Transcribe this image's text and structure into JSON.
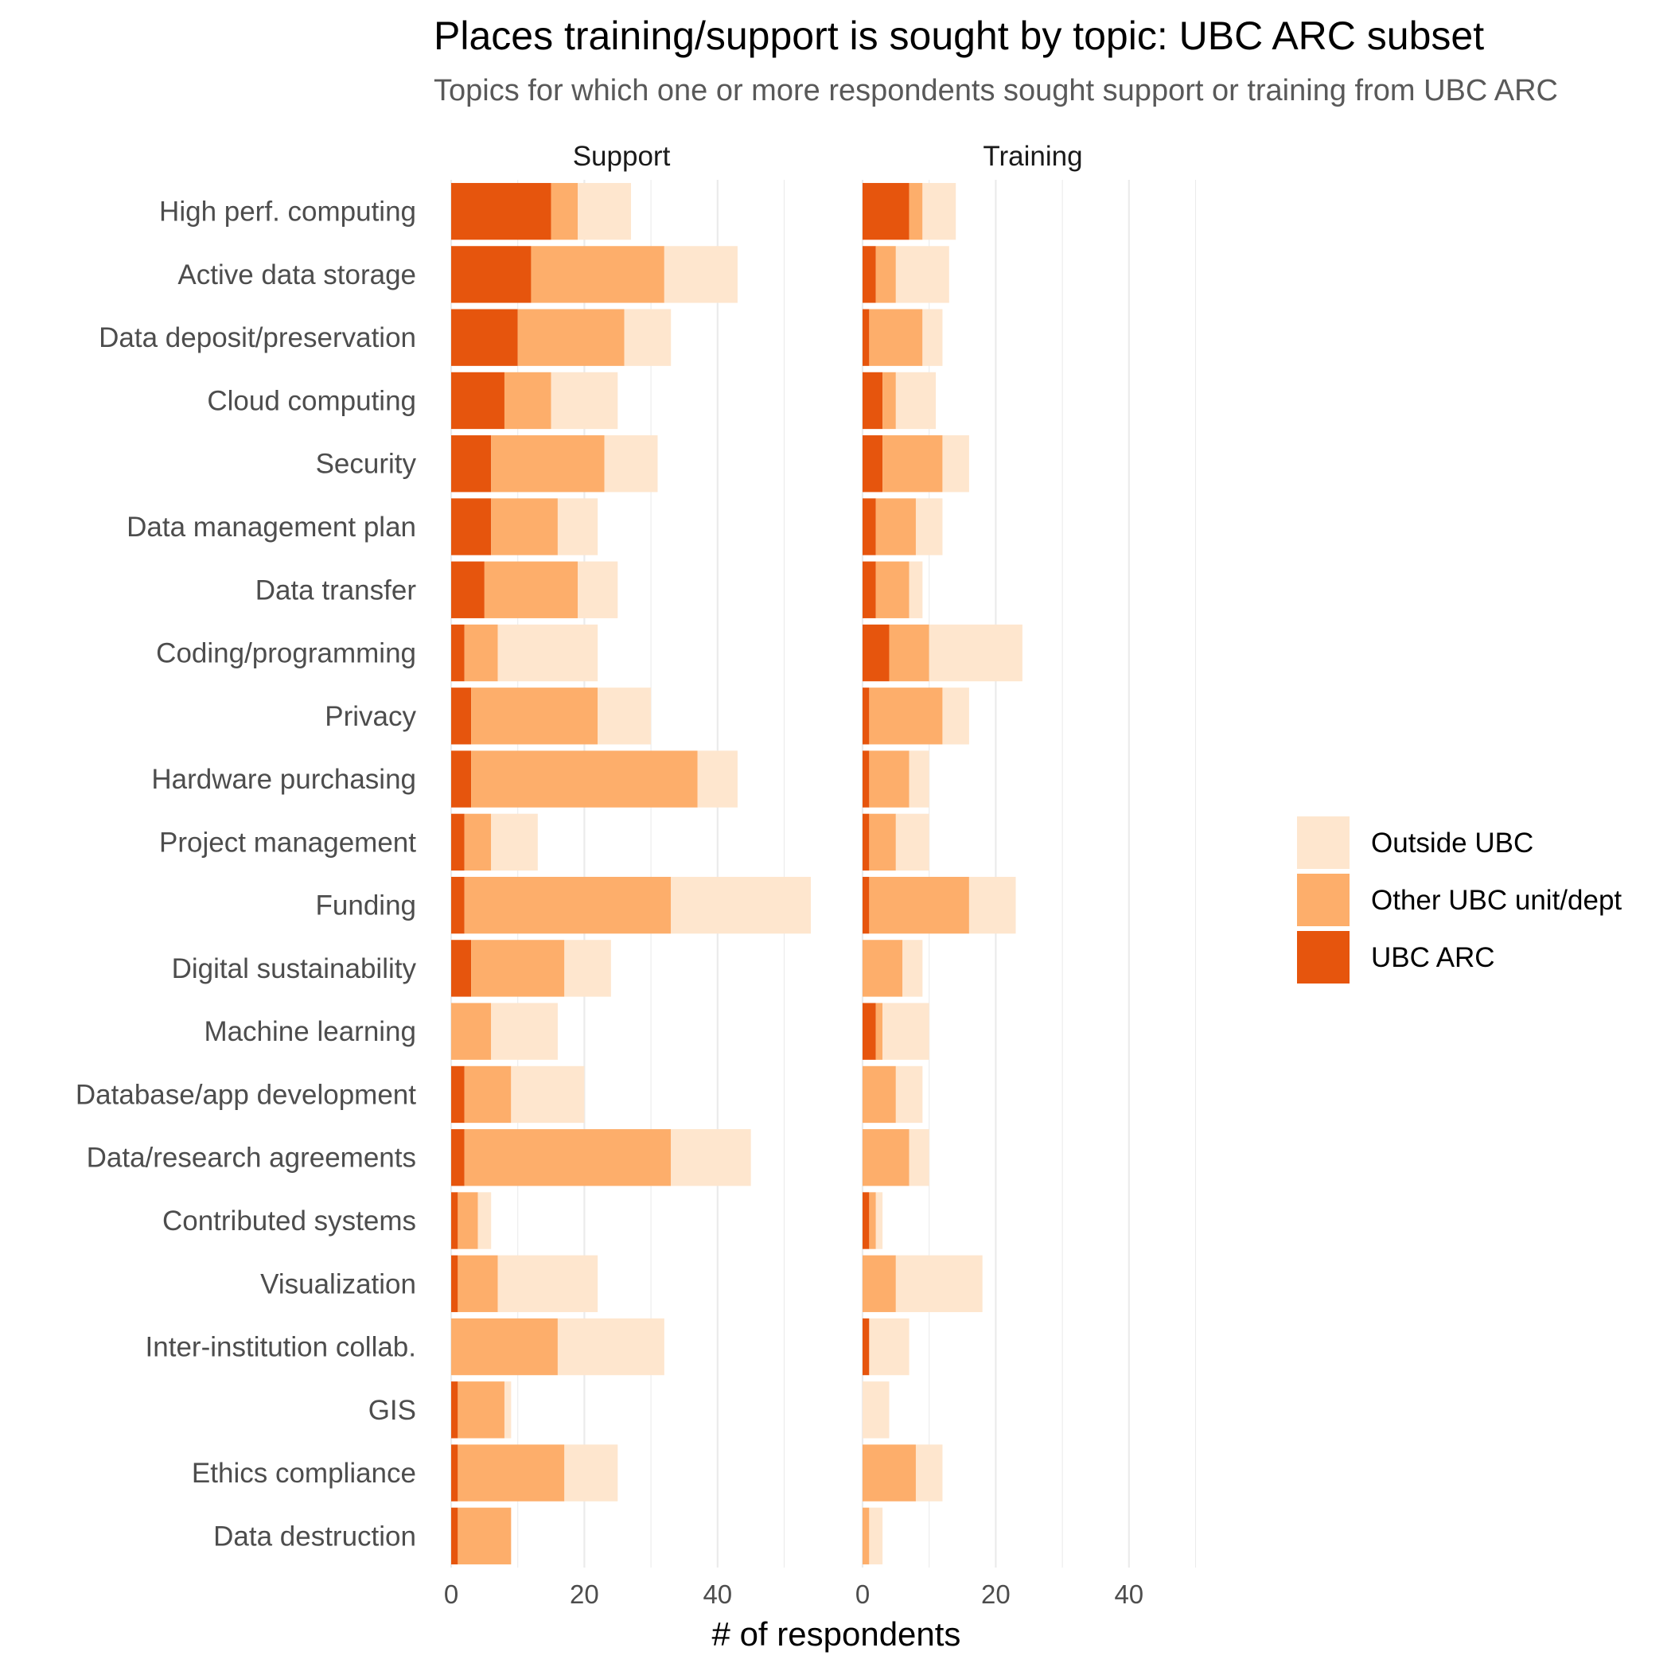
{
  "chart_data": {
    "type": "bar",
    "orientation": "horizontal",
    "stacked": true,
    "title": "Places training/support is sought by topic: UBC ARC subset",
    "subtitle": "Topics for which one or more respondents sought support or training from UBC ARC",
    "xlabel": "# of respondents",
    "ylabel": "",
    "xlim": [
      0,
      52
    ],
    "x_ticks": [
      0,
      20,
      40
    ],
    "grid": true,
    "legend_position": "right",
    "categories": [
      "High perf. computing",
      "Active data storage",
      "Data deposit/preservation",
      "Cloud computing",
      "Security",
      "Data management plan",
      "Data transfer",
      "Coding/programming",
      "Privacy",
      "Hardware purchasing",
      "Project management",
      "Funding",
      "Digital sustainability",
      "Machine learning",
      "Database/app development",
      "Data/research agreements",
      "Contributed systems",
      "Visualization",
      "Inter-institution collab.",
      "GIS",
      "Ethics compliance",
      "Data destruction"
    ],
    "legend": [
      {
        "name": "Outside UBC",
        "color": "#fee6ce"
      },
      {
        "name": "Other UBC unit/dept",
        "color": "#fdae6b"
      },
      {
        "name": "UBC ARC",
        "color": "#e6550d"
      }
    ],
    "facets": [
      {
        "label": "Support",
        "series": [
          {
            "name": "UBC ARC",
            "color": "#e6550d",
            "values": [
              15,
              12,
              10,
              8,
              6,
              6,
              5,
              2,
              3,
              3,
              2,
              2,
              3,
              0,
              2,
              2,
              1,
              1,
              0,
              1,
              1,
              1
            ]
          },
          {
            "name": "Other UBC unit/dept",
            "color": "#fdae6b",
            "values": [
              4,
              20,
              16,
              7,
              17,
              10,
              14,
              5,
              19,
              34,
              4,
              31,
              14,
              6,
              7,
              31,
              3,
              6,
              16,
              7,
              16,
              8
            ]
          },
          {
            "name": "Outside UBC",
            "color": "#fee6ce",
            "values": [
              8,
              11,
              7,
              10,
              8,
              6,
              6,
              15,
              8,
              6,
              7,
              21,
              7,
              10,
              11,
              12,
              2,
              15,
              16,
              1,
              8,
              0
            ]
          }
        ]
      },
      {
        "label": "Training",
        "series": [
          {
            "name": "UBC ARC",
            "color": "#e6550d",
            "values": [
              7,
              2,
              1,
              3,
              3,
              2,
              2,
              4,
              1,
              1,
              1,
              1,
              0,
              2,
              0,
              0,
              1,
              0,
              1,
              0,
              0,
              0
            ]
          },
          {
            "name": "Other UBC unit/dept",
            "color": "#fdae6b",
            "values": [
              2,
              3,
              8,
              2,
              9,
              6,
              5,
              6,
              11,
              6,
              4,
              15,
              6,
              1,
              5,
              7,
              1,
              5,
              0,
              0,
              8,
              1
            ]
          },
          {
            "name": "Outside UBC",
            "color": "#fee6ce",
            "values": [
              5,
              8,
              3,
              6,
              4,
              4,
              2,
              14,
              4,
              3,
              5,
              7,
              3,
              7,
              4,
              3,
              1,
              13,
              6,
              4,
              4,
              2
            ]
          }
        ]
      }
    ]
  }
}
